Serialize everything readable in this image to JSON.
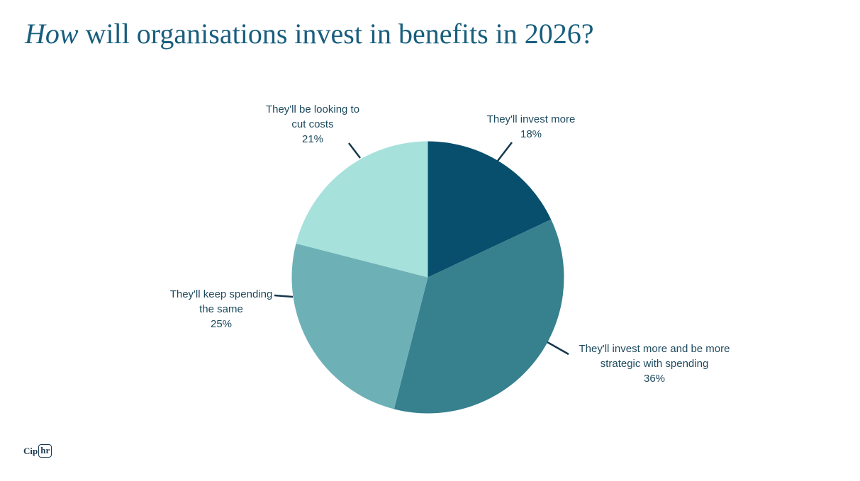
{
  "title": {
    "italic_word": "How",
    "rest": " will organisations invest in benefits in 2026?"
  },
  "logo": {
    "prefix": "Cip",
    "boxed": "hr"
  },
  "chart_data": {
    "type": "pie",
    "title": "How will organisations invest in benefits in 2026?",
    "start_angle_deg": 0,
    "direction": "clockwise",
    "legend_position": "none",
    "label_color": "#1e4a5e",
    "leader_line_color": "#16384d",
    "slices": [
      {
        "label": "They'll invest more",
        "value": 18,
        "pct_label": "18%",
        "color": "#084f6d",
        "label_lines": [
          "They'll invest more"
        ]
      },
      {
        "label": "They'll invest more and be more strategic with spending",
        "value": 36,
        "pct_label": "36%",
        "color": "#37808e",
        "label_lines": [
          "They'll invest more and be more",
          "strategic with spending"
        ]
      },
      {
        "label": "They'll keep spending the same",
        "value": 25,
        "pct_label": "25%",
        "color": "#6db1b7",
        "label_lines": [
          "They'll keep spending",
          "the same"
        ]
      },
      {
        "label": "They'll be looking to cut costs",
        "value": 21,
        "pct_label": "21%",
        "color": "#a6e1db",
        "label_lines": [
          "They'll be looking to",
          "cut costs"
        ]
      }
    ]
  }
}
